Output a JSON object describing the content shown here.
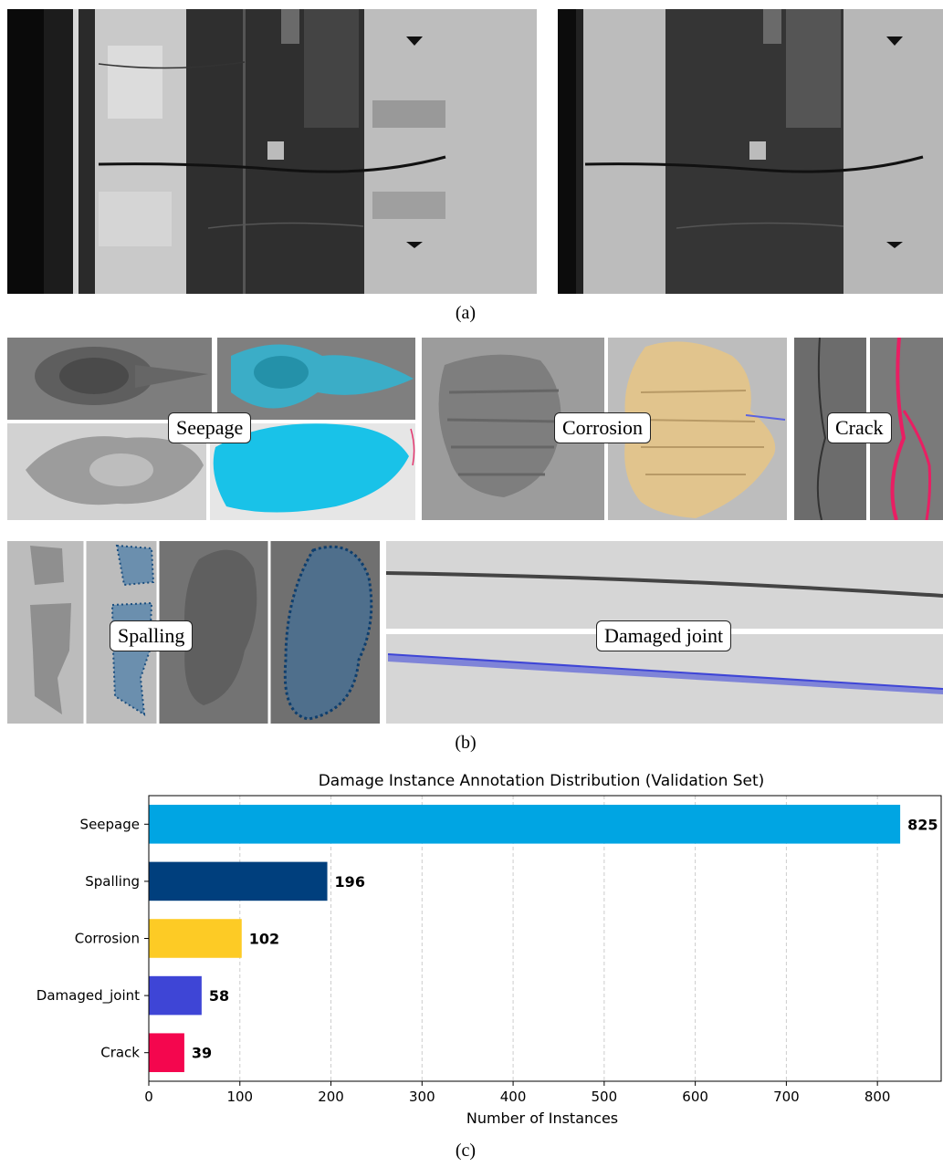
{
  "panels": {
    "a_caption": "(a)",
    "b_caption": "(b)",
    "c_caption": "(c)",
    "b_labels": {
      "seepage": "Seepage",
      "corrosion": "Corrosion",
      "crack": "Crack",
      "spalling": "Spalling",
      "damaged_joint": "Damaged joint"
    }
  },
  "colors": {
    "seepage": "#00a5e3",
    "spalling": "#003f7d",
    "corrosion": "#fdcb25",
    "damaged_joint": "#3e45d6",
    "crack": "#f4064e"
  },
  "chart_data": {
    "type": "bar",
    "orientation": "horizontal",
    "title": "Damage Instance Annotation Distribution (Validation Set)",
    "xlabel": "Number of Instances",
    "ylabel": "",
    "categories": [
      "Seepage",
      "Spalling",
      "Corrosion",
      "Damaged_joint",
      "Crack"
    ],
    "values": [
      825,
      196,
      102,
      58,
      39
    ],
    "bar_colors": [
      "#00a5e3",
      "#003f7d",
      "#fdcb25",
      "#3e45d6",
      "#f4064e"
    ],
    "xlim": [
      0,
      870
    ],
    "xticks": [
      0,
      100,
      200,
      300,
      400,
      500,
      600,
      700,
      800
    ],
    "grid": "vertical dashed",
    "data_labels": true
  }
}
